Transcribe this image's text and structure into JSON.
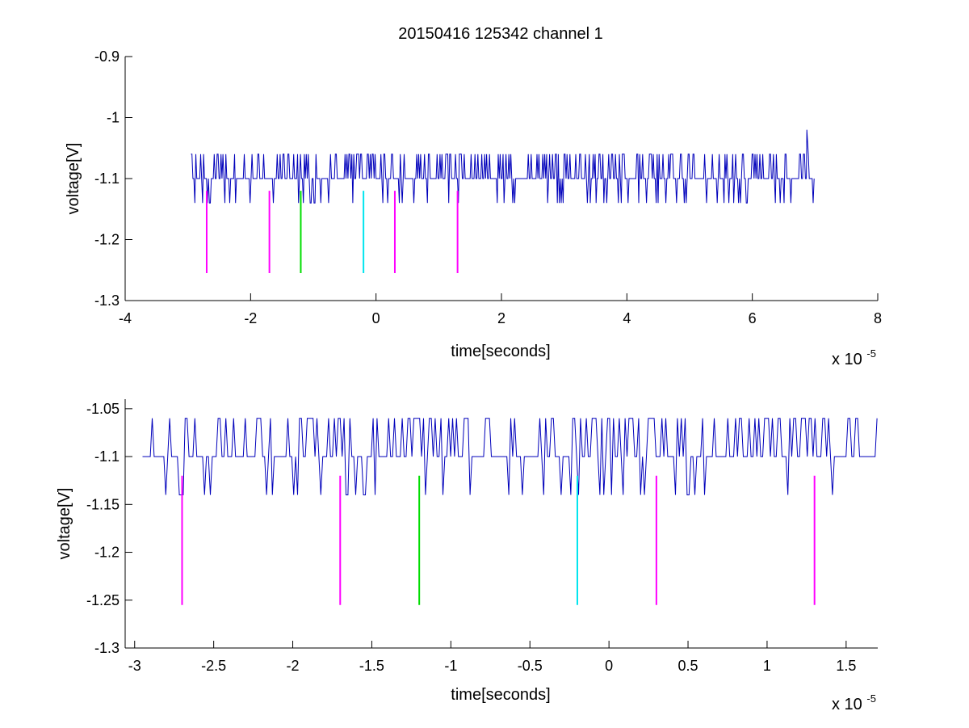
{
  "figure": {
    "title": "20150416 125342 channel 1"
  },
  "chart_data": [
    {
      "type": "line",
      "xlabel": "time[seconds]",
      "ylabel": "voltage[V]",
      "x_exponent_label": "x 10",
      "x_exponent_power": "-5",
      "xlim": [
        -4,
        8
      ],
      "ylim": [
        -1.3,
        -0.9
      ],
      "x_ticks": [
        -4,
        -2,
        0,
        2,
        4,
        6,
        8
      ],
      "x_tick_labels": [
        "-4",
        "-2",
        "0",
        "2",
        "4",
        "6",
        "8"
      ],
      "y_ticks": [
        -1.3,
        -1.2,
        -1.1,
        -1,
        -0.9
      ],
      "y_tick_labels": [
        "-1.3",
        "-1.2",
        "-1.1",
        "-1",
        "-0.9"
      ],
      "grid": false,
      "series": [
        {
          "color": "#0000bb",
          "x_range": [
            -2.95,
            7.0
          ],
          "baseline": -1.1,
          "levels": [
            -1.06,
            -1.1,
            -1.14
          ],
          "spike": {
            "x": 6.87,
            "y": -1.02
          }
        }
      ],
      "markers": [
        {
          "x": -2.7,
          "y_top": -1.12,
          "y_bottom": -1.255,
          "color": "#ff00ff"
        },
        {
          "x": -1.7,
          "y_top": -1.12,
          "y_bottom": -1.255,
          "color": "#ff00ff"
        },
        {
          "x": -1.2,
          "y_top": -1.12,
          "y_bottom": -1.255,
          "color": "#00dd00"
        },
        {
          "x": -0.2,
          "y_top": -1.12,
          "y_bottom": -1.255,
          "color": "#00e5ee"
        },
        {
          "x": 0.3,
          "y_top": -1.12,
          "y_bottom": -1.255,
          "color": "#ff00ff"
        },
        {
          "x": 1.3,
          "y_top": -1.12,
          "y_bottom": -1.255,
          "color": "#ff00ff"
        }
      ]
    },
    {
      "type": "line",
      "xlabel": "time[seconds]",
      "ylabel": "voltage[V]",
      "x_exponent_label": "x 10",
      "x_exponent_power": "-5",
      "xlim": [
        -3.06,
        1.7
      ],
      "ylim": [
        -1.3,
        -1.04
      ],
      "x_ticks": [
        -3,
        -2.5,
        -2,
        -1.5,
        -1,
        -0.5,
        0,
        0.5,
        1,
        1.5
      ],
      "x_tick_labels": [
        "-3",
        "-2.5",
        "-2",
        "-1.5",
        "-1",
        "-0.5",
        "0",
        "0.5",
        "1",
        "1.5"
      ],
      "y_ticks": [
        -1.3,
        -1.25,
        -1.2,
        -1.15,
        -1.1,
        -1.05
      ],
      "y_tick_labels": [
        "-1.3",
        "-1.25",
        "-1.2",
        "-1.15",
        "-1.1",
        "-1.05"
      ],
      "grid": false,
      "series": [
        {
          "color": "#0000bb",
          "x_range": [
            -2.95,
            1.7
          ],
          "baseline": -1.1,
          "levels": [
            -1.06,
            -1.1,
            -1.14
          ]
        }
      ],
      "markers": [
        {
          "x": -2.7,
          "y_top": -1.12,
          "y_bottom": -1.255,
          "color": "#ff00ff"
        },
        {
          "x": -1.7,
          "y_top": -1.12,
          "y_bottom": -1.255,
          "color": "#ff00ff"
        },
        {
          "x": -1.2,
          "y_top": -1.12,
          "y_bottom": -1.255,
          "color": "#00dd00"
        },
        {
          "x": -0.2,
          "y_top": -1.12,
          "y_bottom": -1.255,
          "color": "#00e5ee"
        },
        {
          "x": 0.3,
          "y_top": -1.12,
          "y_bottom": -1.255,
          "color": "#ff00ff"
        },
        {
          "x": 1.3,
          "y_top": -1.12,
          "y_bottom": -1.255,
          "color": "#ff00ff"
        }
      ]
    }
  ]
}
